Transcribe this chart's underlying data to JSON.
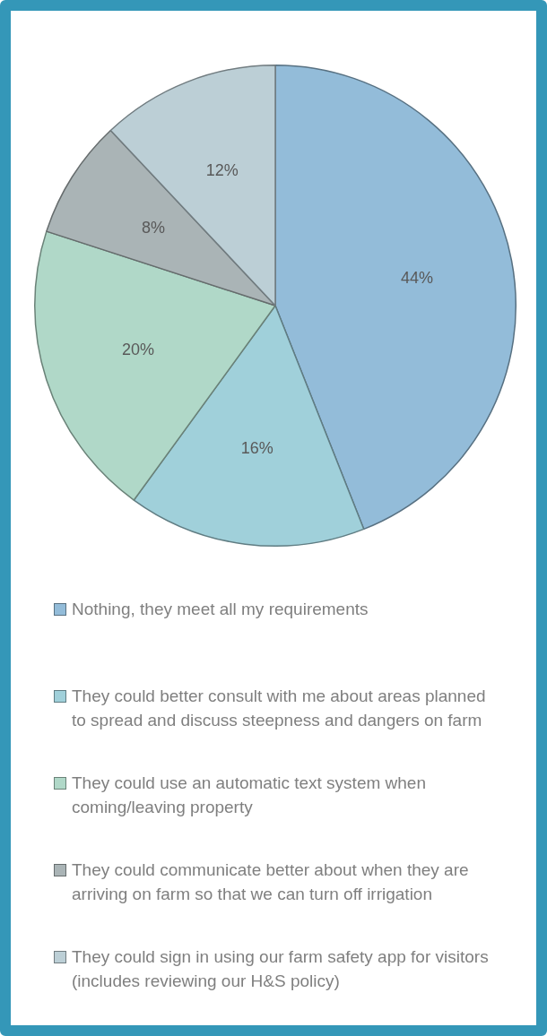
{
  "chart_data": {
    "type": "pie",
    "categories": [
      "Nothing, they meet all my requirements",
      "They could better consult with me about areas planned to spread and discuss steepness and dangers on farm",
      "They could use an automatic text system when coming/leaving property",
      "They could communicate better about when they are arriving on farm so that we can turn off irrigation",
      "They could sign in using our farm safety app for visitors (includes reviewing our H&S policy)"
    ],
    "values": [
      44,
      16,
      20,
      8,
      12
    ],
    "colors": [
      "#93bcd9",
      "#a0d0da",
      "#b0d8c8",
      "#aab4b6",
      "#bccfd6"
    ],
    "value_labels": [
      "44%",
      "16%",
      "20%",
      "8%",
      "12%"
    ],
    "legend": "bottom"
  }
}
